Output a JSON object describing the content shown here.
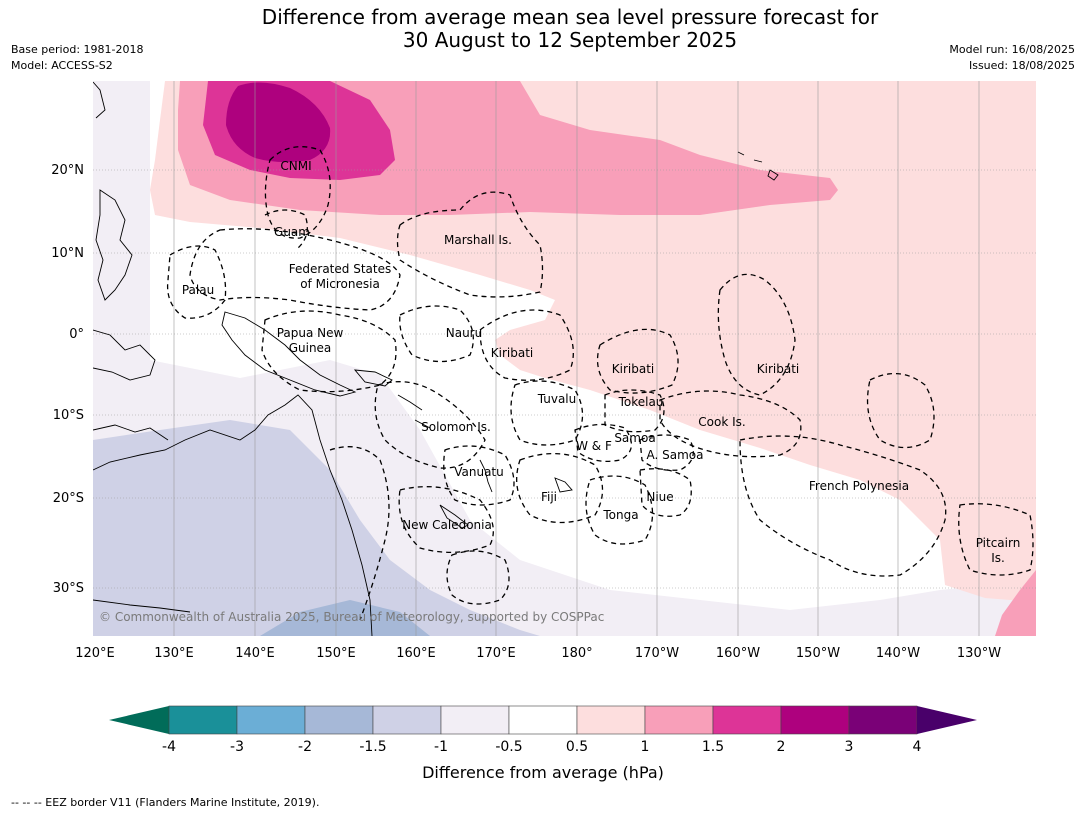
{
  "header": {
    "title_line1": "Difference from average mean sea level pressure forecast for",
    "title_line2": "30 August to 12 September 2025",
    "base_period": "Base period: 1981-2018",
    "model": "Model: ACCESS-S2",
    "model_run": "Model run: 16/08/2025",
    "issued": "Issued: 18/08/2025"
  },
  "map": {
    "lon_labels": [
      "120°E",
      "130°E",
      "140°E",
      "150°E",
      "160°E",
      "170°E",
      "180°",
      "170°W",
      "160°W",
      "150°W",
      "140°W",
      "130°W"
    ],
    "lat_labels": [
      "20°N",
      "10°N",
      "0°",
      "10°S",
      "20°S",
      "30°S"
    ],
    "regions": {
      "cnmi": "CNMI",
      "guam": "Guam",
      "marshall": "Marshall Is.",
      "fsm1": "Federated States",
      "fsm2": "of Micronesia",
      "palau": "Palau",
      "png1": "Papua New",
      "png2": "Guinea",
      "nauru": "Nauru",
      "kiribati_w": "Kiribati",
      "kiribati_c": "Kiribati",
      "kiribati_e": "Kiribati",
      "tuvalu": "Tuvalu",
      "tokelau": "Tokelau",
      "cook": "Cook Is.",
      "solomon": "Solomon Is.",
      "samoa": "Samoa",
      "wf": "W & F",
      "asamoa": "A. Samoa",
      "vanuatu": "Vanuatu",
      "fiji": "Fiji",
      "niue": "Niue",
      "tonga": "Tonga",
      "newcal": "New Caledonia",
      "frpoly": "French Polynesia",
      "pitcairn1": "Pitcairn",
      "pitcairn2": "Is."
    },
    "copyright": "© Commonwealth of Australia 2025, Bureau of Meteorology, supported by COSPPac"
  },
  "colorbar": {
    "title": "Difference from average (hPa)",
    "ticks": [
      "-4",
      "-3",
      "-2",
      "-1.5",
      "-1",
      "-0.5",
      "0.5",
      "1",
      "1.5",
      "2",
      "3",
      "4"
    ],
    "colors": [
      "#1a9099",
      "#6baed6",
      "#a6b8d7",
      "#cfd1e6",
      "#f2eef5",
      "#ffffff",
      "#fddede",
      "#f89fb9",
      "#dd3497",
      "#ae017e",
      "#7a0177"
    ],
    "under_color": "#016c59",
    "over_color": "#49006a"
  },
  "footnote": "--  --  -- EEZ border V11 (Flanders Marine Institute, 2019)."
}
